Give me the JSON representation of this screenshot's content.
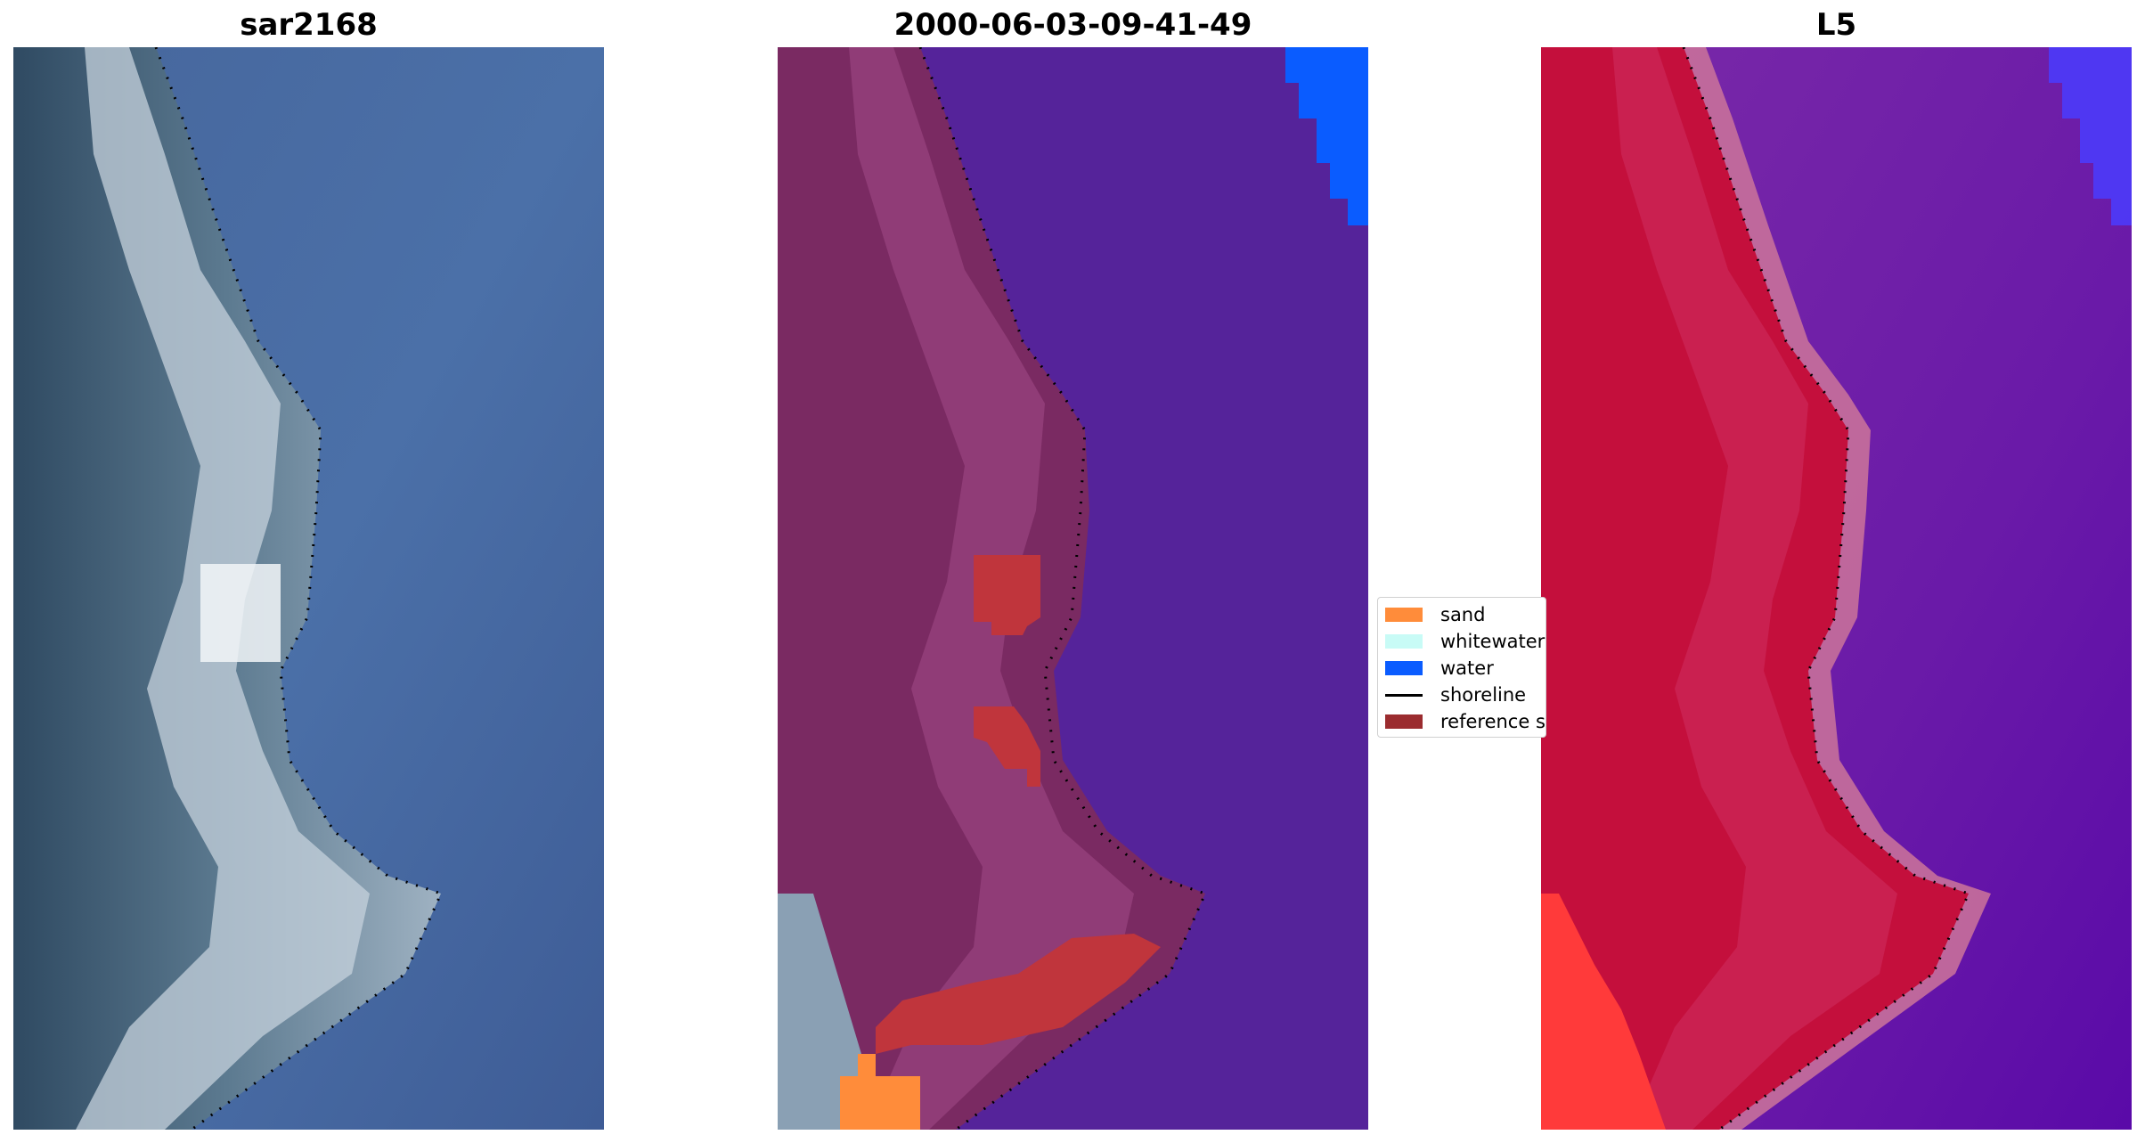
{
  "panels": [
    {
      "title": "sar2168"
    },
    {
      "title": "2000-06-03-09-41-49"
    },
    {
      "title": "L5"
    }
  ],
  "legend": {
    "items": [
      {
        "label": "sand",
        "color": "#ff8c3a",
        "kind": "patch"
      },
      {
        "label": "whitewater",
        "color": "#c8fbf6",
        "kind": "patch"
      },
      {
        "label": "water",
        "color": "#0a5cff",
        "kind": "patch"
      },
      {
        "label": "shoreline",
        "color": "#000000",
        "kind": "line"
      },
      {
        "label": "reference s",
        "color": "#9b2c2f",
        "kind": "patch"
      }
    ]
  },
  "colors": {
    "sea_rgb": "#4a6ea6",
    "land_overlay": "#8a3570",
    "water_overlay": "#55239a",
    "sand": "#ff8c3a",
    "water_class": "#0a5cff",
    "reference": "#c0353c",
    "l5_land": "#c40f3c",
    "l5_water": "#6a1aa8"
  }
}
